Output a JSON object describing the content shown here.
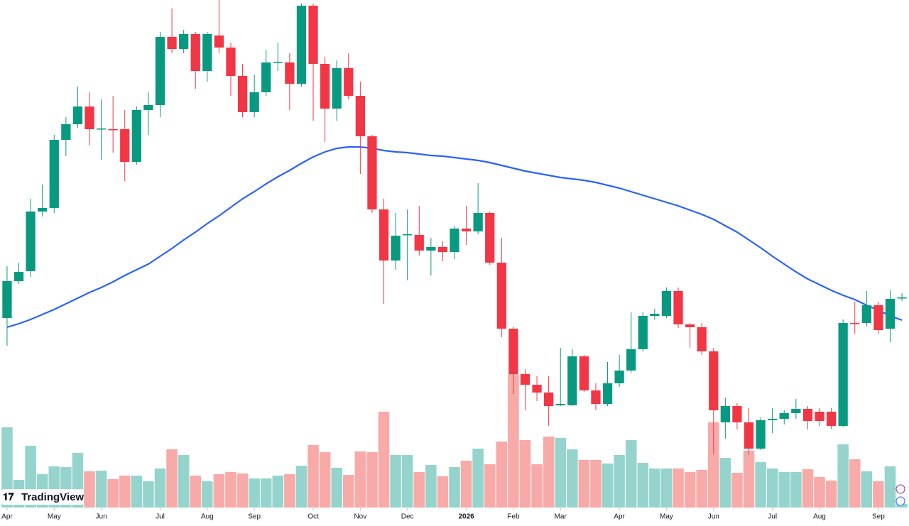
{
  "chart_data": {
    "type": "candlestick",
    "watermark": "TradingView",
    "up_color": "#089981",
    "down_color": "#f23645",
    "volume_up_color": "#95d4cd",
    "volume_down_color": "#f7aaa8",
    "ma_color": "#2962ff",
    "xlim": [
      -0.6,
      76.6
    ],
    "xticks": [
      {
        "value": 0,
        "label": "Apr"
      },
      {
        "value": 4,
        "label": "May"
      },
      {
        "value": 8,
        "label": "Jun"
      },
      {
        "value": 13,
        "label": "Jul"
      },
      {
        "value": 17,
        "label": "Aug"
      },
      {
        "value": 21,
        "label": "Sep"
      },
      {
        "value": 26,
        "label": "Oct"
      },
      {
        "value": 30,
        "label": "Nov"
      },
      {
        "value": 34,
        "label": "Dec"
      },
      {
        "value": 39,
        "label": "2026"
      },
      {
        "value": 43,
        "label": "Feb"
      },
      {
        "value": 47,
        "label": "Mar"
      },
      {
        "value": 52,
        "label": "Apr"
      },
      {
        "value": 56,
        "label": "May"
      },
      {
        "value": 60,
        "label": "Jun"
      },
      {
        "value": 65,
        "label": "Jul"
      },
      {
        "value": 69,
        "label": "Aug"
      },
      {
        "value": 74,
        "label": "Sep"
      }
    ],
    "ylim": [
      0,
      74.1
    ],
    "vlim": [
      0,
      715
    ],
    "candles": [
      [
        29.3,
        36.6,
        25.4,
        34.5
      ],
      [
        34.5,
        37.1,
        34.1,
        35.8
      ],
      [
        35.9,
        46.1,
        35.1,
        44.3
      ],
      [
        44.3,
        48.1,
        43.6,
        44.8
      ],
      [
        44.8,
        55.1,
        44.1,
        54.4
      ],
      [
        54.4,
        57.6,
        52.1,
        56.6
      ],
      [
        56.6,
        61.9,
        56.1,
        59.1
      ],
      [
        59.1,
        61.1,
        53.6,
        55.9
      ],
      [
        55.9,
        60.1,
        51.6,
        56.0
      ],
      [
        55.9,
        60.6,
        52.6,
        55.8
      ],
      [
        55.9,
        58.6,
        48.6,
        51.3
      ],
      [
        51.3,
        59.1,
        50.9,
        58.6
      ],
      [
        58.6,
        61.1,
        55.1,
        59.3
      ],
      [
        59.3,
        69.6,
        57.6,
        68.9
      ],
      [
        68.9,
        72.9,
        66.6,
        67.2
      ],
      [
        67.2,
        69.9,
        66.6,
        69.3
      ],
      [
        69.3,
        69.6,
        61.6,
        64.1
      ],
      [
        64.1,
        69.6,
        62.6,
        69.3
      ],
      [
        69.1,
        74.1,
        66.6,
        67.4
      ],
      [
        67.4,
        68.1,
        60.6,
        63.4
      ],
      [
        63.4,
        65.1,
        57.6,
        58.3
      ],
      [
        58.3,
        63.6,
        57.6,
        61.1
      ],
      [
        61.1,
        67.1,
        60.6,
        65.3
      ],
      [
        65.3,
        68.1,
        64.1,
        65.4
      ],
      [
        65.3,
        66.6,
        58.6,
        62.3
      ],
      [
        62.3,
        73.6,
        61.9,
        73.3
      ],
      [
        73.3,
        73.6,
        57.1,
        65.1
      ],
      [
        65.1,
        66.1,
        54.1,
        58.8
      ],
      [
        58.8,
        65.6,
        57.1,
        64.5
      ],
      [
        64.5,
        66.6,
        60.1,
        60.6
      ],
      [
        60.6,
        62.6,
        49.6,
        54.9
      ],
      [
        54.9,
        55.1,
        44.1,
        44.6
      ],
      [
        44.6,
        46.1,
        31.3,
        37.4
      ],
      [
        37.4,
        44.1,
        36.1,
        40.9
      ],
      [
        41.0,
        44.6,
        34.6,
        41.1
      ],
      [
        41.0,
        45.1,
        38.1,
        38.8
      ],
      [
        38.8,
        40.6,
        35.3,
        39.3
      ],
      [
        39.3,
        40.1,
        37.3,
        38.6
      ],
      [
        38.6,
        42.3,
        37.6,
        41.9
      ],
      [
        41.9,
        45.1,
        39.6,
        41.5
      ],
      [
        41.5,
        48.3,
        41.1,
        44.1
      ],
      [
        44.1,
        44.3,
        36.8,
        37.1
      ],
      [
        37.1,
        40.6,
        26.6,
        27.8
      ],
      [
        27.8,
        28.1,
        18.6,
        21.4
      ],
      [
        21.4,
        22.1,
        16.3,
        19.9
      ],
      [
        19.9,
        21.1,
        17.6,
        18.8
      ],
      [
        18.8,
        21.1,
        14.1,
        16.9
      ],
      [
        17.0,
        25.1,
        16.9,
        17.2
      ],
      [
        17.0,
        24.9,
        16.9,
        23.9
      ],
      [
        23.9,
        24.1,
        18.9,
        19.1
      ],
      [
        19.1,
        20.1,
        16.3,
        17.2
      ],
      [
        17.2,
        23.1,
        16.9,
        20.1
      ],
      [
        20.1,
        24.1,
        19.6,
        21.9
      ],
      [
        21.9,
        30.1,
        21.6,
        24.9
      ],
      [
        24.9,
        30.1,
        24.6,
        29.6
      ],
      [
        29.6,
        30.6,
        29.1,
        29.9
      ],
      [
        29.6,
        33.6,
        29.3,
        33.1
      ],
      [
        33.1,
        33.6,
        27.9,
        28.4
      ],
      [
        28.4,
        28.6,
        25.1,
        28.0
      ],
      [
        28.0,
        28.6,
        24.1,
        24.6
      ],
      [
        24.6,
        25.1,
        10.1,
        16.3
      ],
      [
        14.6,
        18.1,
        12.3,
        16.9
      ],
      [
        16.9,
        17.3,
        13.6,
        14.6
      ],
      [
        14.6,
        16.6,
        10.1,
        10.9
      ],
      [
        10.9,
        15.3,
        10.7,
        14.9
      ],
      [
        14.9,
        16.6,
        13.1,
        15.1
      ],
      [
        15.1,
        16.3,
        14.3,
        15.9
      ],
      [
        15.9,
        17.9,
        15.1,
        16.5
      ],
      [
        16.5,
        16.9,
        13.6,
        14.8
      ],
      [
        16.1,
        16.6,
        14.1,
        14.8
      ],
      [
        16.1,
        16.6,
        13.7,
        14.1
      ],
      [
        14.1,
        29.1,
        13.9,
        28.6
      ],
      [
        28.6,
        31.6,
        27.1,
        28.5
      ],
      [
        28.6,
        33.1,
        28.1,
        31.1
      ],
      [
        31.1,
        31.6,
        27.1,
        27.6
      ],
      [
        27.8,
        33.2,
        25.9,
        32.0
      ],
      [
        32.1,
        32.8,
        31.7,
        32.2
      ]
    ],
    "volume": {
      "values": [
        113,
        39,
        87,
        47,
        58,
        57,
        77,
        51,
        52,
        40,
        45,
        45,
        37,
        55,
        82,
        74,
        45,
        37,
        47,
        50,
        48,
        41,
        41,
        45,
        47,
        59,
        88,
        78,
        56,
        46,
        79,
        78,
        135,
        74,
        74,
        50,
        60,
        44,
        57,
        66,
        83,
        61,
        93,
        188,
        95,
        61,
        100,
        98,
        82,
        67,
        67,
        62,
        74,
        95,
        63,
        55,
        55,
        55,
        50,
        53,
        120,
        70,
        49,
        80,
        64,
        55,
        50,
        50,
        54,
        43,
        38,
        89,
        68,
        51,
        37,
        58,
        5
      ]
    },
    "ma": {
      "values": [
        28.0,
        28.5,
        29.1,
        29.8,
        30.5,
        31.3,
        32.1,
        32.9,
        33.6,
        34.4,
        35.3,
        36.1,
        36.9,
        38.0,
        39.1,
        40.3,
        41.4,
        42.6,
        43.7,
        44.9,
        46.1,
        47.1,
        48.2,
        49.2,
        50.1,
        51.1,
        52.0,
        52.7,
        53.2,
        53.4,
        53.4,
        53.2,
        52.9,
        52.7,
        52.6,
        52.4,
        52.2,
        52.1,
        51.9,
        51.7,
        51.5,
        51.2,
        50.8,
        50.4,
        50.0,
        49.7,
        49.4,
        49.1,
        48.9,
        48.7,
        48.4,
        48.0,
        47.6,
        47.1,
        46.6,
        46.1,
        45.6,
        45.1,
        44.5,
        43.9,
        43.2,
        42.3,
        41.4,
        40.3,
        39.2,
        38.0,
        36.9,
        35.8,
        34.8,
        34.0,
        33.2,
        32.5,
        31.9,
        31.1,
        30.4,
        29.6,
        29.0
      ]
    }
  }
}
